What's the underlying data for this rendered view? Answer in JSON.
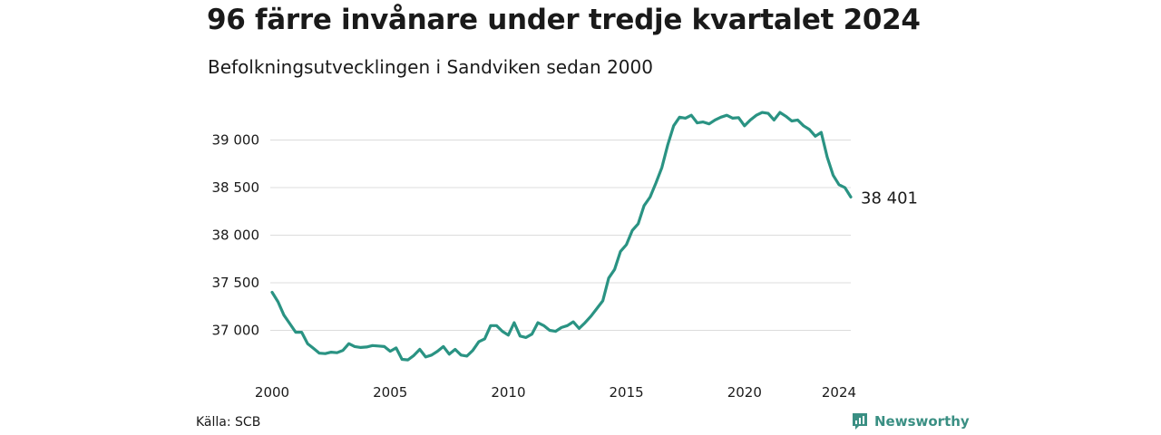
{
  "title": "96 färre invånare under tredje kvartalet 2024",
  "subtitle": "Befolkningsutvecklingen i Sandviken sedan 2000",
  "source": "Källa: SCB",
  "brand": {
    "name": "Newsworthy",
    "icon": "newsworthy-logo-icon",
    "color": "#3a8f83"
  },
  "chart_data": {
    "type": "line",
    "x_unit": "quarter",
    "xlim": [
      2000,
      2024.5
    ],
    "ylim": [
      36700,
      39300
    ],
    "grid": true,
    "line_color": "#2a9383",
    "x_ticks": [
      {
        "value": 2000,
        "label": "2000"
      },
      {
        "value": 2005,
        "label": "2005"
      },
      {
        "value": 2010,
        "label": "2010"
      },
      {
        "value": 2015,
        "label": "2015"
      },
      {
        "value": 2020,
        "label": "2020"
      },
      {
        "value": 2024,
        "label": "2024"
      }
    ],
    "y_ticks": [
      {
        "value": 37000,
        "label": "37 000"
      },
      {
        "value": 37500,
        "label": "37 500"
      },
      {
        "value": 38000,
        "label": "38 000"
      },
      {
        "value": 38500,
        "label": "38 500"
      },
      {
        "value": 39000,
        "label": "39 000"
      }
    ],
    "end_label": "38 401",
    "series": [
      {
        "x": [
          2000.0,
          2000.25,
          2000.5,
          2000.75,
          2001.0,
          2001.25,
          2001.5,
          2001.75,
          2002.0,
          2002.25,
          2002.5,
          2002.75,
          2003.0,
          2003.25,
          2003.5,
          2003.75,
          2004.0,
          2004.25,
          2004.5,
          2004.75,
          2005.0,
          2005.25,
          2005.5,
          2005.75,
          2006.0,
          2006.25,
          2006.5,
          2006.75,
          2007.0,
          2007.25,
          2007.5,
          2007.75,
          2008.0,
          2008.25,
          2008.5,
          2008.75,
          2009.0,
          2009.25,
          2009.5,
          2009.75,
          2010.0,
          2010.25,
          2010.5,
          2010.75,
          2011.0,
          2011.25,
          2011.5,
          2011.75,
          2012.0,
          2012.25,
          2012.5,
          2012.75,
          2013.0,
          2013.25,
          2013.5,
          2013.75,
          2014.0,
          2014.25,
          2014.5,
          2014.75,
          2015.0,
          2015.25,
          2015.5,
          2015.75,
          2016.0,
          2016.25,
          2016.5,
          2016.75,
          2017.0,
          2017.25,
          2017.5,
          2017.75,
          2018.0,
          2018.25,
          2018.5,
          2018.75,
          2019.0,
          2019.25,
          2019.5,
          2019.75,
          2020.0,
          2020.25,
          2020.5,
          2020.75,
          2021.0,
          2021.25,
          2021.5,
          2021.75,
          2022.0,
          2022.25,
          2022.5,
          2022.75,
          2023.0,
          2023.25,
          2023.5,
          2023.75,
          2024.0,
          2024.25,
          2024.5
        ],
        "values": [
          37400,
          37300,
          37160,
          37070,
          36980,
          36980,
          36860,
          36810,
          36760,
          36755,
          36770,
          36765,
          36790,
          36860,
          36830,
          36820,
          36825,
          36840,
          36835,
          36830,
          36780,
          36815,
          36695,
          36690,
          36735,
          36800,
          36720,
          36740,
          36780,
          36830,
          36750,
          36800,
          36740,
          36730,
          36790,
          36880,
          36910,
          37050,
          37050,
          36990,
          36950,
          37080,
          36940,
          36925,
          36960,
          37080,
          37050,
          37000,
          36990,
          37030,
          37050,
          37090,
          37020,
          37080,
          37150,
          37230,
          37310,
          37550,
          37640,
          37830,
          37900,
          38050,
          38120,
          38310,
          38400,
          38550,
          38710,
          38950,
          39150,
          39240,
          39230,
          39260,
          39180,
          39190,
          39170,
          39210,
          39240,
          39260,
          39230,
          39235,
          39150,
          39210,
          39260,
          39290,
          39280,
          39210,
          39290,
          39250,
          39200,
          39210,
          39150,
          39110,
          39040,
          39080,
          38820,
          38630,
          38530,
          38500,
          38401
        ]
      }
    ]
  }
}
